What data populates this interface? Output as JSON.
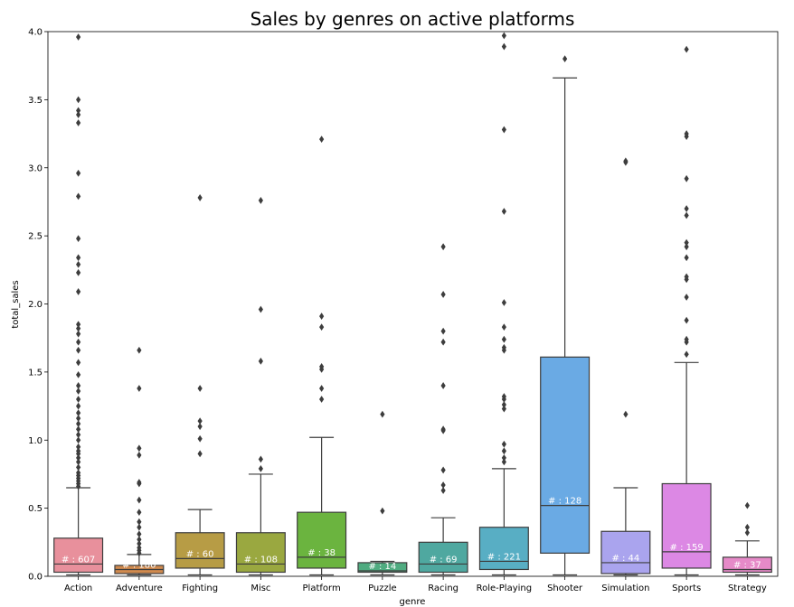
{
  "chart_data": {
    "type": "box",
    "title": "Sales by genres on active platforms",
    "xlabel": "genre",
    "ylabel": "total_sales",
    "ylim": [
      0,
      4.0
    ],
    "yticks": [
      "0.0",
      "0.5",
      "1.0",
      "1.5",
      "2.0",
      "2.5",
      "3.0",
      "3.5",
      "4.0"
    ],
    "count_prefix": "# : ",
    "boxes": [
      {
        "genre": "Action",
        "color": "#e8909c",
        "whisker_low": 0.01,
        "q1": 0.03,
        "median": 0.09,
        "q3": 0.28,
        "whisker_high": 0.65,
        "count": "607",
        "outliers": [
          0.66,
          0.68,
          0.7,
          0.72,
          0.74,
          0.76,
          0.8,
          0.84,
          0.87,
          0.9,
          0.92,
          0.95,
          1.0,
          1.04,
          1.08,
          1.12,
          1.16,
          1.2,
          1.25,
          1.3,
          1.36,
          1.4,
          1.48,
          1.57,
          1.66,
          1.72,
          1.78,
          1.82,
          1.85,
          2.09,
          2.23,
          2.29,
          2.34,
          2.48,
          2.79,
          2.96,
          3.33,
          3.39,
          3.42,
          3.5,
          3.96
        ]
      },
      {
        "genre": "Adventure",
        "color": "#d08a4e",
        "whisker_low": 0.01,
        "q1": 0.02,
        "median": 0.05,
        "q3": 0.08,
        "whisker_high": 0.16,
        "count": "180",
        "outliers": [
          0.17,
          0.19,
          0.21,
          0.24,
          0.27,
          0.31,
          0.36,
          0.4,
          0.47,
          0.56,
          0.68,
          0.69,
          0.89,
          0.94,
          1.38,
          1.66
        ]
      },
      {
        "genre": "Fighting",
        "color": "#b79c45",
        "whisker_low": 0.01,
        "q1": 0.06,
        "median": 0.13,
        "q3": 0.32,
        "whisker_high": 0.49,
        "count": "60",
        "outliers": [
          0.9,
          1.01,
          1.1,
          1.14,
          1.38,
          2.78
        ]
      },
      {
        "genre": "Misc",
        "color": "#9aa840",
        "whisker_low": 0.01,
        "q1": 0.03,
        "median": 0.09,
        "q3": 0.32,
        "whisker_high": 0.75,
        "count": "108",
        "outliers": [
          0.79,
          0.86,
          1.58,
          1.96,
          2.76
        ]
      },
      {
        "genre": "Platform",
        "color": "#6bb43f",
        "whisker_low": 0.01,
        "q1": 0.06,
        "median": 0.14,
        "q3": 0.47,
        "whisker_high": 1.02,
        "count": "38",
        "outliers": [
          1.3,
          1.38,
          1.52,
          1.54,
          1.83,
          1.91,
          3.21
        ]
      },
      {
        "genre": "Puzzle",
        "color": "#4fab80",
        "whisker_low": 0.01,
        "q1": 0.03,
        "median": 0.04,
        "q3": 0.1,
        "whisker_high": 0.11,
        "count": "14",
        "outliers": [
          0.48,
          1.19
        ]
      },
      {
        "genre": "Racing",
        "color": "#4fa8a0",
        "whisker_low": 0.01,
        "q1": 0.03,
        "median": 0.09,
        "q3": 0.25,
        "whisker_high": 0.43,
        "count": "69",
        "outliers": [
          0.63,
          0.67,
          0.78,
          1.07,
          1.08,
          1.4,
          1.72,
          1.8,
          2.07,
          2.42
        ]
      },
      {
        "genre": "Role-Playing",
        "color": "#58aec4",
        "whisker_low": 0.01,
        "q1": 0.05,
        "median": 0.11,
        "q3": 0.36,
        "whisker_high": 0.79,
        "count": "221",
        "outliers": [
          0.84,
          0.87,
          0.92,
          0.97,
          1.23,
          1.26,
          1.3,
          1.32,
          1.66,
          1.68,
          1.74,
          1.83,
          2.01,
          2.68,
          3.28,
          3.89,
          3.97
        ]
      },
      {
        "genre": "Shooter",
        "color": "#6aaae4",
        "whisker_low": 0.01,
        "q1": 0.17,
        "median": 0.52,
        "q3": 1.61,
        "whisker_high": 3.66,
        "count": "128",
        "outliers": [
          3.8
        ]
      },
      {
        "genre": "Simulation",
        "color": "#aaa4ee",
        "whisker_low": 0.01,
        "q1": 0.02,
        "median": 0.1,
        "q3": 0.33,
        "whisker_high": 0.65,
        "count": "44",
        "outliers": [
          1.19,
          3.04,
          3.05
        ]
      },
      {
        "genre": "Sports",
        "color": "#dc88e4",
        "whisker_low": 0.01,
        "q1": 0.06,
        "median": 0.18,
        "q3": 0.68,
        "whisker_high": 1.57,
        "count": "159",
        "outliers": [
          1.63,
          1.72,
          1.74,
          1.88,
          2.05,
          2.18,
          2.2,
          2.34,
          2.42,
          2.45,
          2.65,
          2.7,
          2.92,
          3.23,
          3.25,
          3.87
        ]
      },
      {
        "genre": "Strategy",
        "color": "#e68ac8",
        "whisker_low": 0.01,
        "q1": 0.03,
        "median": 0.05,
        "q3": 0.14,
        "whisker_high": 0.26,
        "count": "37",
        "outliers": [
          0.32,
          0.36,
          0.52
        ]
      }
    ]
  }
}
